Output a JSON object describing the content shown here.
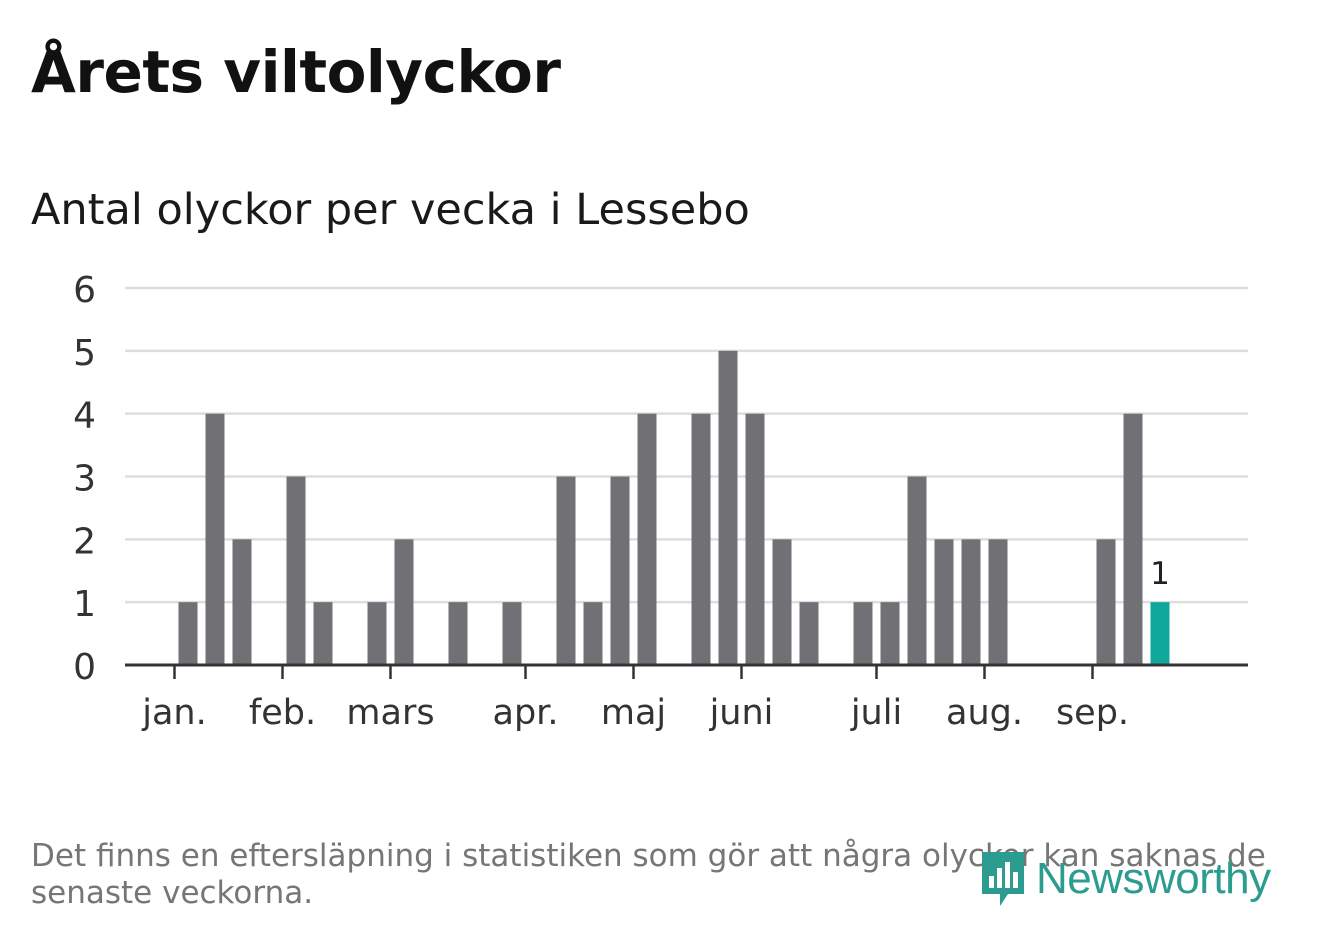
{
  "title": "Årets viltolyckor",
  "footnote": "Det finns en eftersläpning i statistiken som gör att några olyckor kan saknas de senaste veckorna.",
  "logo": {
    "text": "Newsworthy",
    "icon": "newsworthy-chart-icon"
  },
  "colors": {
    "bar": "#717075",
    "highlight": "#11a89c",
    "grid": "#dddddd",
    "axis": "#333333"
  },
  "chart_data": {
    "type": "bar",
    "title": "Antal olyckor per vecka i Lessebo",
    "xlabel": "",
    "ylabel": "",
    "ylim": [
      0,
      6
    ],
    "yticks": [
      0,
      1,
      2,
      3,
      4,
      5,
      6
    ],
    "week_range": [
      1,
      39
    ],
    "month_ticks": [
      {
        "label": "jan.",
        "week": 2.5
      },
      {
        "label": "feb.",
        "week": 6.5
      },
      {
        "label": "mars",
        "week": 10.5
      },
      {
        "label": "apr.",
        "week": 15.5
      },
      {
        "label": "maj",
        "week": 19.5
      },
      {
        "label": "juni",
        "week": 23.5
      },
      {
        "label": "juli",
        "week": 28.5
      },
      {
        "label": "aug.",
        "week": 32.5
      },
      {
        "label": "sep.",
        "week": 36.5
      }
    ],
    "weeks": [
      1,
      2,
      3,
      4,
      5,
      6,
      7,
      8,
      9,
      10,
      11,
      12,
      13,
      14,
      15,
      16,
      17,
      18,
      19,
      20,
      21,
      22,
      23,
      24,
      25,
      26,
      27,
      28,
      29,
      30,
      31,
      32,
      33,
      34,
      35,
      36,
      37,
      38,
      39
    ],
    "values": [
      0,
      0,
      1,
      4,
      2,
      0,
      3,
      1,
      0,
      1,
      2,
      0,
      1,
      0,
      1,
      0,
      3,
      1,
      3,
      4,
      0,
      4,
      5,
      4,
      2,
      1,
      0,
      1,
      1,
      3,
      2,
      2,
      2,
      0,
      0,
      0,
      2,
      4,
      1
    ],
    "highlight": {
      "week": 39,
      "value": 1,
      "label": "1"
    }
  }
}
